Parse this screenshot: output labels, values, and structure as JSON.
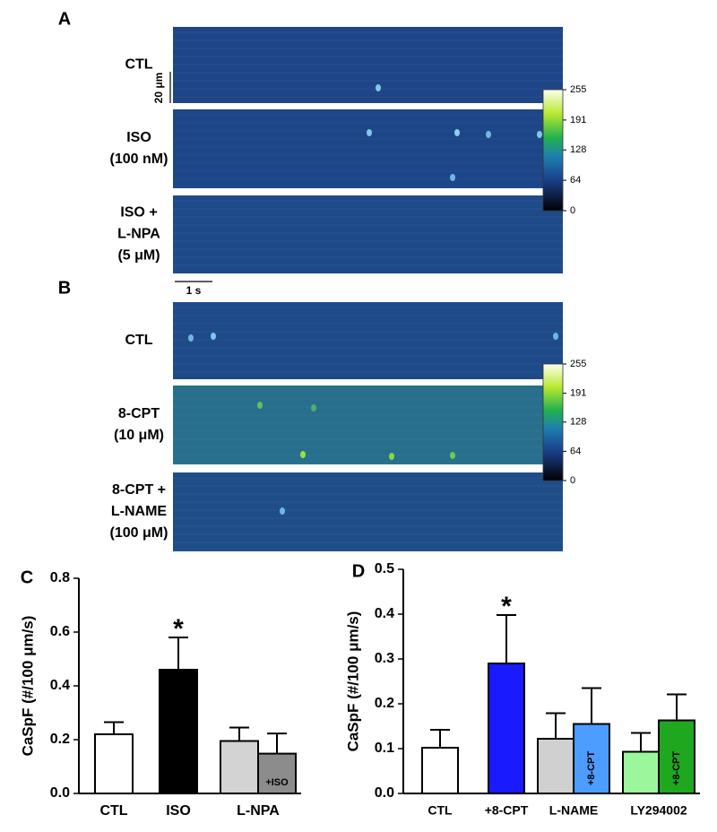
{
  "figure": {
    "panels": [
      {
        "label": "A",
        "rows": [
          {
            "label": [
              "CTL"
            ]
          },
          {
            "label": [
              "ISO",
              "(100 nM)"
            ]
          },
          {
            "label": [
              "ISO +",
              "L-NPA",
              "(5 μM)"
            ]
          }
        ],
        "scale_bars": {
          "space": "20 μm",
          "time": "1 s"
        },
        "colorbar": {
          "lim": [
            0,
            255
          ],
          "ticks": [
            0,
            64,
            128,
            191,
            255
          ]
        }
      },
      {
        "label": "B",
        "rows": [
          {
            "label": [
              "CTL"
            ]
          },
          {
            "label": [
              "8-CPT",
              "(10 μM)"
            ]
          },
          {
            "label": [
              "8-CPT +",
              "L-NAME",
              "(100 μM)"
            ]
          }
        ],
        "colorbar": {
          "lim": [
            0,
            255
          ],
          "ticks": [
            0,
            64,
            128,
            191,
            255
          ]
        }
      }
    ]
  },
  "chart_data": [
    {
      "type": "bar",
      "panel_label": "C",
      "ylabel": "CaSpF (#/100 μm/s)",
      "categories": [
        "CTL",
        "ISO",
        "L-NPA",
        null
      ],
      "bar_labels": [
        null,
        null,
        null,
        "+ISO"
      ],
      "values": [
        0.22,
        0.46,
        0.195,
        0.148
      ],
      "errors": [
        0.045,
        0.12,
        0.05,
        0.075
      ],
      "significance": [
        null,
        "*",
        null,
        null
      ],
      "colors": [
        "#ffffff",
        "#000000",
        "#d3d3d3",
        "#8c8c8c"
      ],
      "ylim": [
        0,
        0.8
      ],
      "yticks": [
        {
          "value": 0,
          "label": "0.0"
        },
        0.2,
        0.4,
        0.6,
        0.8
      ]
    },
    {
      "type": "bar",
      "panel_label": "D",
      "ylabel": "CaSpF (#/100 μm/s)",
      "categories": [
        "CTL",
        "+8-CPT",
        "L-NAME",
        null,
        "LY294002",
        null
      ],
      "bar_labels": [
        null,
        null,
        null,
        "+8-CPT",
        null,
        "+8-CPT"
      ],
      "values": [
        0.102,
        0.29,
        0.122,
        0.155,
        0.093,
        0.163
      ],
      "errors": [
        0.04,
        0.108,
        0.057,
        0.08,
        0.042,
        0.058
      ],
      "significance": [
        null,
        "*",
        null,
        null,
        null,
        null
      ],
      "colors": [
        "#ffffff",
        "#1a1aff",
        "#d0d0d0",
        "#4d9cff",
        "#9cf79c",
        "#1fa81f"
      ],
      "ylim": [
        0,
        0.5
      ],
      "yticks": [
        {
          "value": 0,
          "label": "0.0"
        },
        0.1,
        0.2,
        0.3,
        0.4,
        0.5
      ]
    }
  ]
}
